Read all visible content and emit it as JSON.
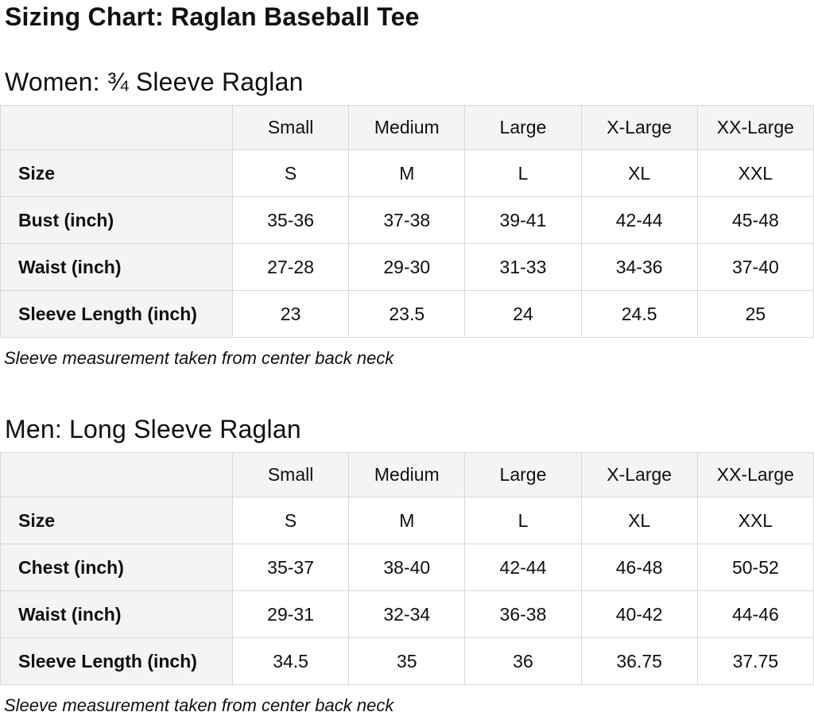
{
  "page_title": "Sizing Chart: Raglan Baseball Tee",
  "colors": {
    "text": "#0f1111",
    "header_bg": "#f4f4f4",
    "cell_bg": "#ffffff",
    "border": "#d9d9d9"
  },
  "sections": [
    {
      "heading": "Women: ¾ Sleeve Raglan",
      "table": {
        "columns": [
          "",
          "Small",
          "Medium",
          "Large",
          "X-Large",
          "XX-Large"
        ],
        "rows": [
          {
            "label": "Size",
            "values": [
              "S",
              "M",
              "L",
              "XL",
              "XXL"
            ]
          },
          {
            "label": "Bust (inch)",
            "values": [
              "35-36",
              "37-38",
              "39-41",
              "42-44",
              "45-48"
            ]
          },
          {
            "label": "Waist (inch)",
            "values": [
              "27-28",
              "29-30",
              "31-33",
              "34-36",
              "37-40"
            ]
          },
          {
            "label": "Sleeve Length (inch)",
            "values": [
              "23",
              "23.5",
              "24",
              "24.5",
              "25"
            ]
          }
        ]
      },
      "note": "Sleeve measurement taken from center back neck"
    },
    {
      "heading": "Men: Long Sleeve Raglan",
      "table": {
        "columns": [
          "",
          "Small",
          "Medium",
          "Large",
          "X-Large",
          "XX-Large"
        ],
        "rows": [
          {
            "label": "Size",
            "values": [
              "S",
              "M",
              "L",
              "XL",
              "XXL"
            ]
          },
          {
            "label": "Chest (inch)",
            "values": [
              "35-37",
              "38-40",
              "42-44",
              "46-48",
              "50-52"
            ]
          },
          {
            "label": "Waist (inch)",
            "values": [
              "29-31",
              "32-34",
              "36-38",
              "40-42",
              "44-46"
            ]
          },
          {
            "label": "Sleeve Length (inch)",
            "values": [
              "34.5",
              "35",
              "36",
              "36.75",
              "37.75"
            ]
          }
        ]
      },
      "note": "Sleeve measurement taken from center back neck"
    }
  ]
}
